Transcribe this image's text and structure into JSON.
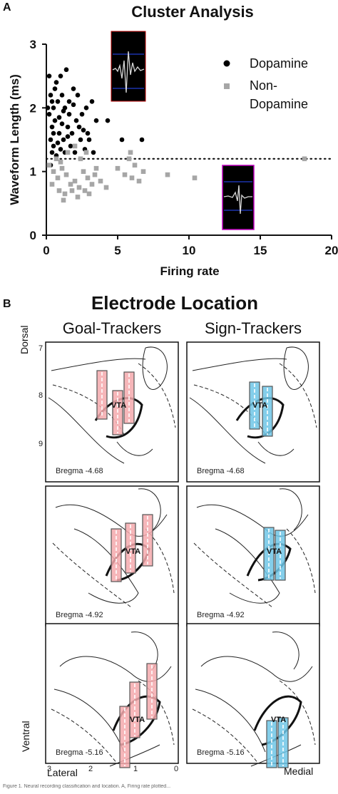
{
  "panel_a": {
    "letter": "A",
    "chart_data": {
      "type": "scatter",
      "title": "Cluster Analysis",
      "xlabel": "Firing rate",
      "ylabel": "Waveform Length (ms)",
      "xlim": [
        0,
        20
      ],
      "ylim": [
        0,
        3
      ],
      "x_ticks": [
        "0",
        "5",
        "10",
        "15",
        "20"
      ],
      "y_ticks": [
        "0",
        "1",
        "2",
        "3"
      ],
      "threshold_y": 1.2,
      "legend_position": "top-right",
      "series": [
        {
          "name": "Dopamine",
          "marker": "circle",
          "color": "#000000",
          "points": [
            [
              0.3,
              2.2
            ],
            [
              0.5,
              2.0
            ],
            [
              0.7,
              2.4
            ],
            [
              1.0,
              2.5
            ],
            [
              1.4,
              2.6
            ],
            [
              0.2,
              1.9
            ],
            [
              0.4,
              1.7
            ],
            [
              0.6,
              1.8
            ],
            [
              0.8,
              2.1
            ],
            [
              1.1,
              2.2
            ],
            [
              1.3,
              2.0
            ],
            [
              1.6,
              1.9
            ],
            [
              1.9,
              2.3
            ],
            [
              2.2,
              2.2
            ],
            [
              0.3,
              1.5
            ],
            [
              0.5,
              1.4
            ],
            [
              0.9,
              1.6
            ],
            [
              1.2,
              1.5
            ],
            [
              1.5,
              1.7
            ],
            [
              1.8,
              1.6
            ],
            [
              2.1,
              1.8
            ],
            [
              2.5,
              1.9
            ],
            [
              2.8,
              2.0
            ],
            [
              3.2,
              2.1
            ],
            [
              0.4,
              1.3
            ],
            [
              0.7,
              1.25
            ],
            [
              1.0,
              1.35
            ],
            [
              1.3,
              1.3
            ],
            [
              1.7,
              1.4
            ],
            [
              2.0,
              1.3
            ],
            [
              2.4,
              1.5
            ],
            [
              2.9,
              1.6
            ],
            [
              0.2,
              2.5
            ],
            [
              0.6,
              2.3
            ],
            [
              1.2,
              1.95
            ],
            [
              1.6,
              2.1
            ],
            [
              2.3,
              1.7
            ],
            [
              0.9,
              1.85
            ],
            [
              0.5,
              1.6
            ],
            [
              1.1,
              1.75
            ],
            [
              0.1,
              2.0
            ],
            [
              0.4,
              2.1
            ],
            [
              1.5,
              1.55
            ],
            [
              2.6,
              1.65
            ],
            [
              3.5,
              1.8
            ],
            [
              3.0,
              1.5
            ],
            [
              4.3,
              1.8
            ],
            [
              5.3,
              1.5
            ],
            [
              6.7,
              1.5
            ],
            [
              0.8,
              1.45
            ],
            [
              1.9,
              2.05
            ],
            [
              2.7,
              1.35
            ],
            [
              3.3,
              1.3
            ],
            [
              0.3,
              1.1
            ]
          ]
        },
        {
          "name": "Non-Dopamine",
          "marker": "square",
          "color": "#a6a6a6",
          "points": [
            [
              0.2,
              1.1
            ],
            [
              0.5,
              1.0
            ],
            [
              0.8,
              0.9
            ],
            [
              1.1,
              1.05
            ],
            [
              1.4,
              0.95
            ],
            [
              1.7,
              0.8
            ],
            [
              2.0,
              0.85
            ],
            [
              2.3,
              0.75
            ],
            [
              2.6,
              1.0
            ],
            [
              2.9,
              0.9
            ],
            [
              3.2,
              0.8
            ],
            [
              3.5,
              1.05
            ],
            [
              3.8,
              0.85
            ],
            [
              0.4,
              0.8
            ],
            [
              0.9,
              0.7
            ],
            [
              1.3,
              0.65
            ],
            [
              1.8,
              0.7
            ],
            [
              2.2,
              0.6
            ],
            [
              2.7,
              0.7
            ],
            [
              3.0,
              0.65
            ],
            [
              1.0,
              1.15
            ],
            [
              1.5,
              1.3
            ],
            [
              2.0,
              1.4
            ],
            [
              2.4,
              1.2
            ],
            [
              5.0,
              1.05
            ],
            [
              5.5,
              0.95
            ],
            [
              6.0,
              0.9
            ],
            [
              6.5,
              0.85
            ],
            [
              6.2,
              1.1
            ],
            [
              6.8,
              1.0
            ],
            [
              5.8,
              1.2
            ],
            [
              8.5,
              0.95
            ],
            [
              10.4,
              0.9
            ],
            [
              18.1,
              1.2
            ],
            [
              5.9,
              1.3
            ],
            [
              1.2,
              0.55
            ],
            [
              0.7,
              1.2
            ],
            [
              3.4,
              0.95
            ],
            [
              2.8,
              1.3
            ],
            [
              4.2,
              0.75
            ]
          ]
        }
      ],
      "insets": [
        {
          "name": "dopamine-waveform-inset",
          "border": "#b60000"
        },
        {
          "name": "non-dopamine-waveform-inset",
          "border": "#c000c0"
        }
      ]
    }
  },
  "panel_b": {
    "letter": "B",
    "title": "Electrode Location",
    "col_goal": "Goal-Trackers",
    "col_sign": "Sign-Trackers",
    "dorsal": "Dorsal",
    "ventral": "Ventral",
    "lateral": "Lateral",
    "medial": "Medial",
    "dv_ticks": [
      "7",
      "8",
      "9"
    ],
    "vta_label": "VTA",
    "goal_color": "#f4a9ad",
    "sign_color": "#6ec6e6",
    "rows": [
      {
        "bregma": "Bregma -4.68",
        "goal_count": 3,
        "sign_count": 2
      },
      {
        "bregma": "Bregma -4.92",
        "goal_count": 3,
        "sign_count": 2
      },
      {
        "bregma": "Bregma -5.16",
        "goal_count": 3,
        "sign_count": 2
      }
    ],
    "ml_ticks": [
      "3",
      "2",
      "1",
      "0"
    ]
  },
  "caption": "Figure 1. Neural recording classification and location. A, Firing rate plotted..."
}
